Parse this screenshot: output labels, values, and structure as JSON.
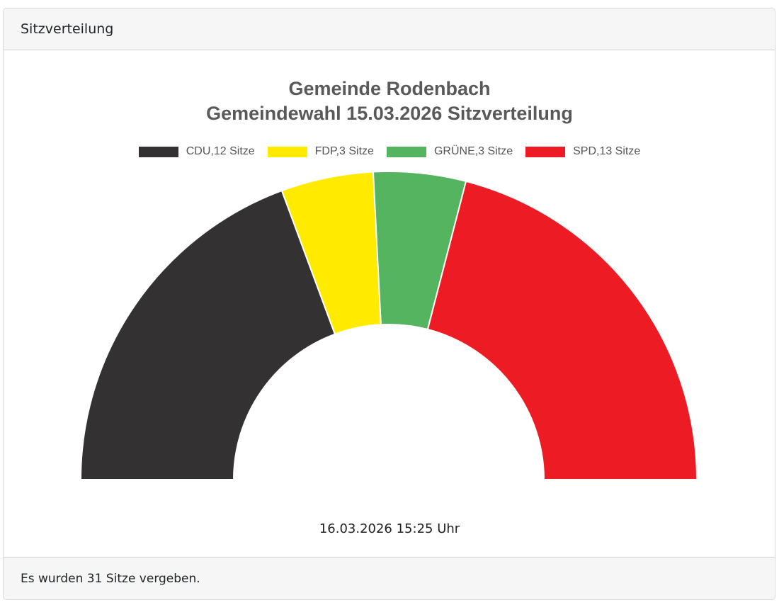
{
  "card": {
    "header_title": "Sitzverteilung",
    "footer_text": "Es wurden 31 Sitze vergeben."
  },
  "chart": {
    "title_line1": "Gemeinde Rodenbach",
    "title_line2": "Gemeindewahl 15.03.2026 Sitzverteilung",
    "timestamp": "16.03.2026 15:25 Uhr",
    "legend": [
      {
        "label": "CDU,12 Sitze",
        "color": "#333132"
      },
      {
        "label": "FDP,3 Sitze",
        "color": "#ffea00"
      },
      {
        "label": "GRÜNE,3 Sitze",
        "color": "#55b460"
      },
      {
        "label": "SPD,13 Sitze",
        "color": "#ed1c24"
      }
    ]
  },
  "chart_data": {
    "type": "pie",
    "subtype": "semicircle-donut (parliament seat distribution)",
    "title": "Gemeinde Rodenbach – Gemeindewahl 15.03.2026 Sitzverteilung",
    "categories": [
      "CDU",
      "FDP",
      "GRÜNE",
      "SPD"
    ],
    "values": [
      12,
      3,
      3,
      13
    ],
    "colors": [
      "#333132",
      "#ffea00",
      "#55b460",
      "#ed1c24"
    ],
    "total": 31,
    "unit": "Sitze",
    "legend_position": "top",
    "annotation": "16.03.2026 15:25 Uhr"
  }
}
